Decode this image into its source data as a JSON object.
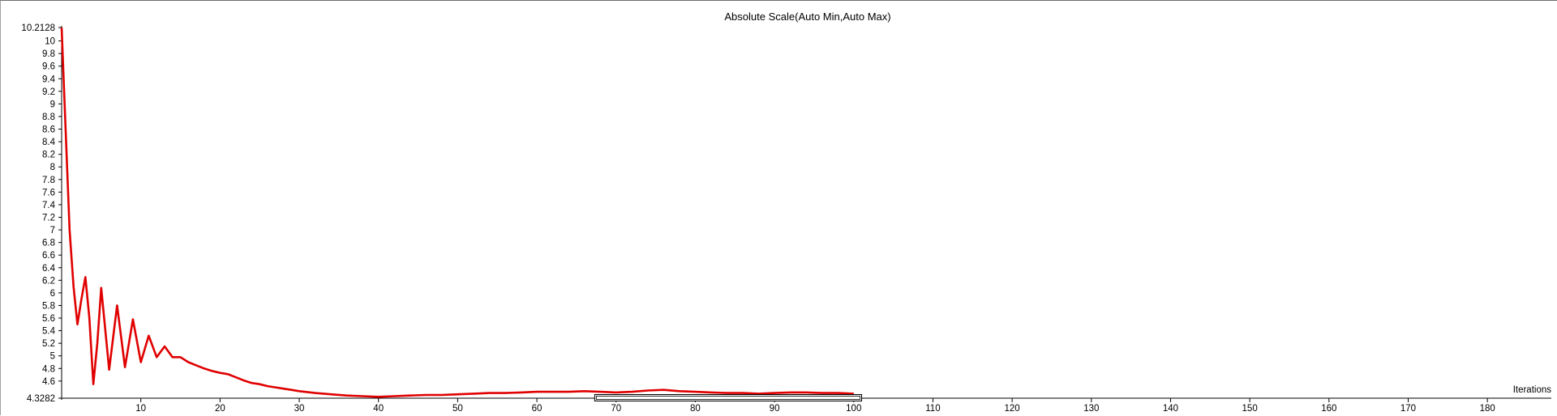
{
  "chart_data": {
    "type": "line",
    "title": "Absolute Scale(Auto Min,Auto Max)",
    "xlabel": "Iterations",
    "ylabel": "",
    "xlim": [
      0,
      185
    ],
    "ylim": [
      4.3282,
      10.2128
    ],
    "grid": false,
    "line_color": "#e00000",
    "y_ticks": [
      "10.2128",
      "10",
      "9.8",
      "9.6",
      "9.4",
      "9.2",
      "9",
      "8.8",
      "8.6",
      "8.4",
      "8.2",
      "8",
      "7.8",
      "7.6",
      "7.4",
      "7.2",
      "7",
      "6.8",
      "6.6",
      "6.4",
      "6.2",
      "6",
      "5.8",
      "5.6",
      "5.4",
      "5.2",
      "5",
      "4.8",
      "4.6",
      "4.3282"
    ],
    "x_ticks": [
      10,
      20,
      30,
      40,
      50,
      60,
      70,
      80,
      90,
      100,
      110,
      120,
      130,
      140,
      150,
      160,
      170,
      180
    ],
    "series": [
      {
        "x": [
          0,
          0.5,
          1,
          1.5,
          2,
          2.5,
          3,
          3.5,
          4,
          4.5,
          5,
          6,
          7,
          8,
          9,
          10,
          11,
          12,
          13,
          14,
          15,
          16,
          17,
          18,
          19,
          20,
          21,
          22,
          23,
          24,
          25,
          26,
          27,
          28,
          29,
          30,
          32,
          34,
          36,
          38,
          40,
          42,
          44,
          46,
          48,
          50,
          52,
          54,
          56,
          58,
          60,
          62,
          64,
          66,
          68,
          70,
          72,
          74,
          76,
          78,
          80,
          82,
          84,
          86,
          88,
          90,
          92,
          94,
          96,
          98,
          100
        ],
        "y": [
          10.21,
          8.6,
          7.0,
          6.1,
          5.5,
          5.9,
          6.25,
          5.6,
          4.55,
          5.2,
          6.08,
          4.78,
          5.8,
          4.82,
          5.58,
          4.9,
          5.32,
          4.98,
          5.15,
          4.98,
          4.98,
          4.9,
          4.85,
          4.8,
          4.76,
          4.73,
          4.71,
          4.66,
          4.61,
          4.57,
          4.55,
          4.52,
          4.5,
          4.48,
          4.46,
          4.44,
          4.41,
          4.39,
          4.37,
          4.36,
          4.35,
          4.36,
          4.37,
          4.38,
          4.38,
          4.39,
          4.4,
          4.41,
          4.41,
          4.42,
          4.43,
          4.43,
          4.43,
          4.44,
          4.43,
          4.42,
          4.43,
          4.45,
          4.46,
          4.44,
          4.43,
          4.42,
          4.41,
          4.41,
          4.4,
          4.41,
          4.42,
          4.42,
          4.41,
          4.41,
          4.4
        ]
      }
    ]
  }
}
